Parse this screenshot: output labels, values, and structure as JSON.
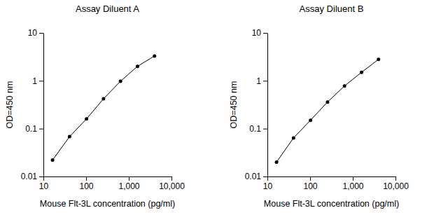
{
  "chart_data": [
    {
      "type": "line",
      "title": "Assay Diluent A",
      "x_label": "Mouse Flt-3L concentration (pg/ml)",
      "y_label": "OD=450 nm",
      "x": [
        16.38,
        40.96,
        102.4,
        256,
        640,
        1600,
        4000
      ],
      "values": [
        0.022,
        0.068,
        0.16,
        0.42,
        0.98,
        2.0,
        3.3
      ],
      "color": "#000000",
      "marker": "circle",
      "log": true,
      "xlim": [
        10,
        10000
      ],
      "ylim": [
        0.01,
        10
      ],
      "xticks": [
        10,
        100,
        {
          "value": 1000,
          "label": "1,000"
        },
        {
          "value": 10000,
          "label": "10,000"
        }
      ],
      "yticks": [
        0.01,
        0.1,
        1,
        10
      ]
    },
    {
      "type": "line",
      "title": "Assay Diluent B",
      "x_label": "Mouse Flt-3L concentration (pg/ml)",
      "y_label": "OD=450 nm",
      "x": [
        16.38,
        40.96,
        102.4,
        256,
        640,
        1600,
        4000
      ],
      "values": [
        0.02,
        0.064,
        0.15,
        0.36,
        0.78,
        1.5,
        2.8
      ],
      "color": "#000000",
      "marker": "circle",
      "log": true,
      "xlim": [
        10,
        10000
      ],
      "ylim": [
        0.01,
        10
      ],
      "xticks": [
        10,
        100,
        {
          "value": 1000,
          "label": "1,000"
        },
        {
          "value": 10000,
          "label": "10,000"
        }
      ],
      "yticks": [
        0.01,
        0.1,
        1,
        10
      ]
    }
  ]
}
